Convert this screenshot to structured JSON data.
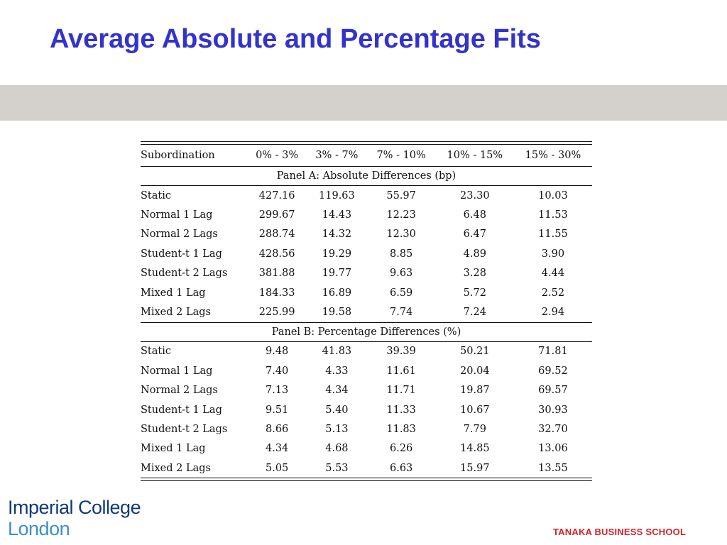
{
  "slide": {
    "title": "Average Absolute and Percentage Fits"
  },
  "table": {
    "headers": [
      "Subordination",
      "0% - 3%",
      "3% - 7%",
      "7% - 10%",
      "10% - 15%",
      "15% - 30%"
    ],
    "panel_a": {
      "title": "Panel A: Absolute Differences (bp)",
      "rows": [
        {
          "label": "Static",
          "values": [
            "427.16",
            "119.63",
            "55.97",
            "23.30",
            "10.03"
          ]
        },
        {
          "label": "Normal 1 Lag",
          "values": [
            "299.67",
            "14.43",
            "12.23",
            "6.48",
            "11.53"
          ]
        },
        {
          "label": "Normal 2 Lags",
          "values": [
            "288.74",
            "14.32",
            "12.30",
            "6.47",
            "11.55"
          ]
        },
        {
          "label": "Student-t 1 Lag",
          "values": [
            "428.56",
            "19.29",
            "8.85",
            "4.89",
            "3.90"
          ]
        },
        {
          "label": "Student-t 2 Lags",
          "values": [
            "381.88",
            "19.77",
            "9.63",
            "3.28",
            "4.44"
          ]
        },
        {
          "label": "Mixed 1 Lag",
          "values": [
            "184.33",
            "16.89",
            "6.59",
            "5.72",
            "2.52"
          ]
        },
        {
          "label": "Mixed 2 Lags",
          "values": [
            "225.99",
            "19.58",
            "7.74",
            "7.24",
            "2.94"
          ]
        }
      ]
    },
    "panel_b": {
      "title": "Panel B: Percentage Differences (%)",
      "rows": [
        {
          "label": "Static",
          "values": [
            "9.48",
            "41.83",
            "39.39",
            "50.21",
            "71.81"
          ]
        },
        {
          "label": "Normal 1 Lag",
          "values": [
            "7.40",
            "4.33",
            "11.61",
            "20.04",
            "69.52"
          ]
        },
        {
          "label": "Normal 2 Lags",
          "values": [
            "7.13",
            "4.34",
            "11.71",
            "19.87",
            "69.57"
          ]
        },
        {
          "label": "Student-t 1 Lag",
          "values": [
            "9.51",
            "5.40",
            "11.33",
            "10.67",
            "30.93"
          ]
        },
        {
          "label": "Student-t 2 Lags",
          "values": [
            "8.66",
            "5.13",
            "11.83",
            "7.79",
            "32.70"
          ]
        },
        {
          "label": "Mixed 1 Lag",
          "values": [
            "4.34",
            "4.68",
            "6.26",
            "14.85",
            "13.06"
          ]
        },
        {
          "label": "Mixed 2 Lags",
          "values": [
            "5.05",
            "5.53",
            "6.63",
            "15.97",
            "13.55"
          ]
        }
      ]
    }
  },
  "footer": {
    "logo_line1": "Imperial College",
    "logo_line2": "London",
    "school": "TANAKA BUSINESS SCHOOL"
  },
  "colors": {
    "title": "#3333cc",
    "band": "#d4d0cb",
    "logo_dark": "#0f3a78",
    "logo_light": "#3d8fc8",
    "school": "#d2232a"
  }
}
